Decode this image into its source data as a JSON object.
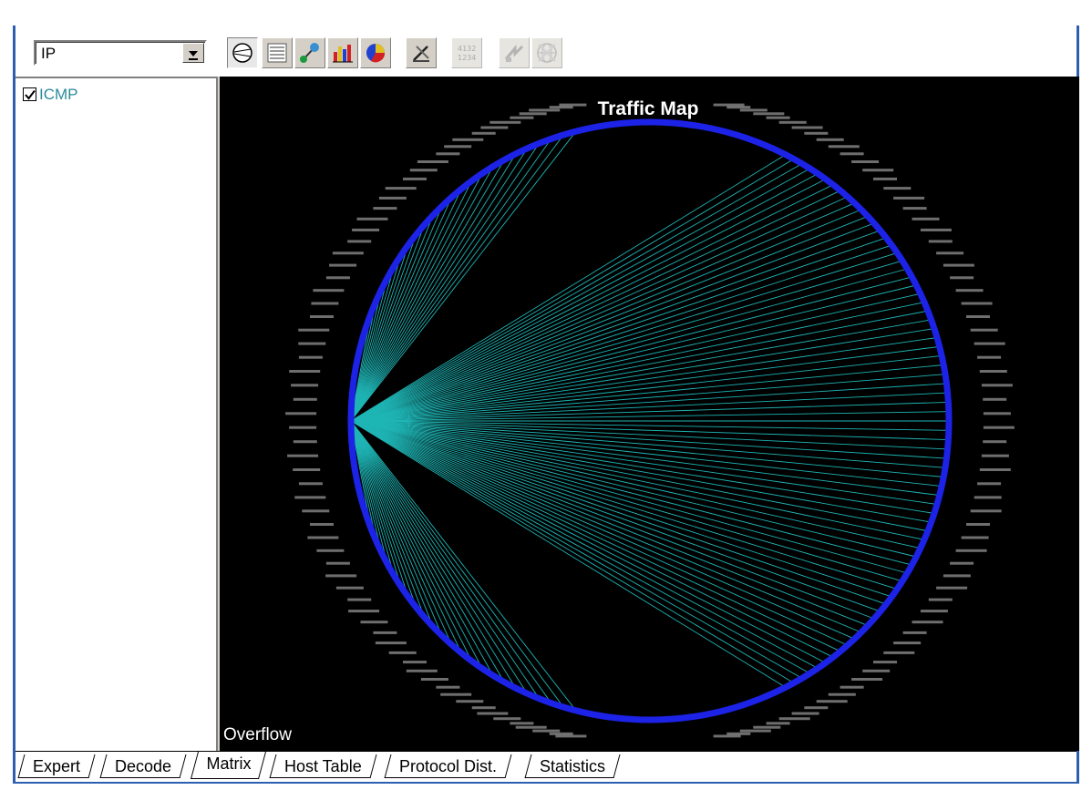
{
  "protocol_select": {
    "value": "IP"
  },
  "toolbar": {
    "buttons": [
      {
        "icon": "traffic-map-icon"
      },
      {
        "icon": "matrix-table-icon"
      },
      {
        "icon": "node-graph-icon"
      },
      {
        "icon": "bar-chart-icon"
      },
      {
        "icon": "pie-chart-icon"
      },
      {
        "icon": "tools-icon"
      },
      {
        "icon": "numbers-icon"
      },
      {
        "icon": "navigate-icon"
      },
      {
        "icon": "globe-icon"
      }
    ]
  },
  "tree": {
    "items": [
      {
        "label": "ICMP",
        "checked": true
      }
    ]
  },
  "map": {
    "title": "Traffic Map",
    "overflow_label": "Overflow",
    "ring_color": "#1c22e6",
    "line_color": "#1fb5b5",
    "label_color": "#8a8a8a"
  },
  "tabs": [
    {
      "label": "Expert"
    },
    {
      "label": "Decode"
    },
    {
      "label": "Matrix",
      "active": true
    },
    {
      "label": "Host Table"
    },
    {
      "label": "Protocol Dist."
    },
    {
      "label": "Statistics"
    }
  ]
}
